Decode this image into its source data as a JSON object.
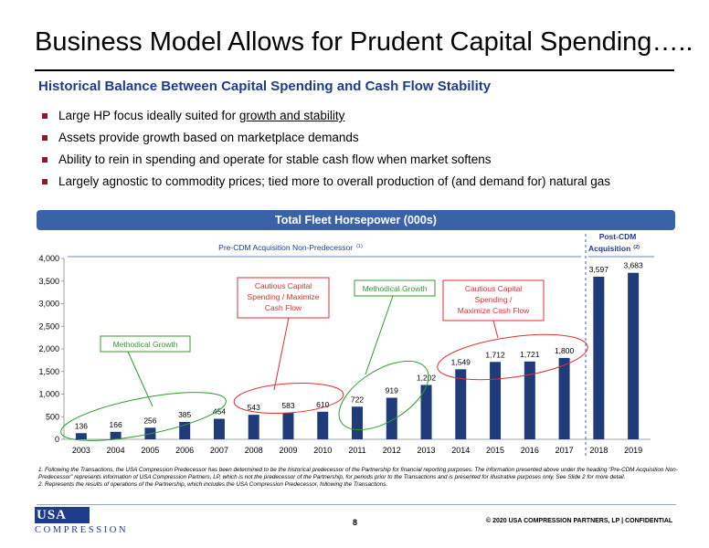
{
  "slide": {
    "title": "Business Model Allows for Prudent Capital Spending…..",
    "subtitle": "Historical Balance Between Capital Spending and Cash Flow Stability",
    "bullets": [
      {
        "pre": "Large HP focus ideally suited for ",
        "underlined": "growth and stability"
      },
      {
        "pre": "Assets provide growth based on marketplace demands",
        "underlined": ""
      },
      {
        "pre": "Ability to rein in spending and operate for stable cash flow when market softens",
        "underlined": ""
      },
      {
        "pre": "Largely agnostic to commodity prices; tied more to overall production of (and demand for) natural gas",
        "underlined": ""
      }
    ],
    "colors": {
      "title_blue": "#1f3b8c",
      "bar": "#1f3b7a",
      "banner": "#3a62a8",
      "bullet": "#8b1a2a",
      "green": "#2e9c2e",
      "red": "#e03030"
    }
  },
  "chart_data": {
    "type": "bar",
    "title": "Total Fleet Horsepower (000s)",
    "categories": [
      "2003",
      "2004",
      "2005",
      "2006",
      "2007",
      "2008",
      "2009",
      "2010",
      "2011",
      "2012",
      "2013",
      "2014",
      "2015",
      "2016",
      "2017",
      "2018",
      "2019"
    ],
    "values": [
      136,
      166,
      256,
      385,
      454,
      543,
      583,
      610,
      722,
      919,
      1202,
      1549,
      1712,
      1721,
      1800,
      3597,
      3683
    ],
    "value_labels": [
      "136",
      "166",
      "256",
      "385",
      "454",
      "543",
      "583",
      "610",
      "722",
      "919",
      "1,202",
      "1,549",
      "1,712",
      "1,721",
      "1,800",
      "3,597",
      "3,683"
    ],
    "ylim": [
      0,
      4000
    ],
    "y_ticks": [
      0,
      500,
      1000,
      1500,
      2000,
      2500,
      3000,
      3500,
      4000
    ],
    "y_tick_labels": [
      "0",
      "500",
      "1,000",
      "1,500",
      "2,000",
      "2,500",
      "3,000",
      "3,500",
      "4,000"
    ],
    "period_labels": {
      "pre": "Pre-CDM Acquisition Non-Predecessor",
      "pre_note": "(1)",
      "post_line1": "Post-CDM",
      "post_line2": "Acquisition",
      "post_note": "(2)"
    },
    "annotations": [
      {
        "label": [
          "Methodical Growth"
        ],
        "color": "green"
      },
      {
        "label": [
          "Cautious Capital",
          "Spending / Maximize",
          "Cash Flow"
        ],
        "color": "red"
      },
      {
        "label": [
          "Methodical Growth"
        ],
        "color": "green"
      },
      {
        "label": [
          "Cautious Capital",
          "Spending /",
          "Maximize Cash Flow"
        ],
        "color": "red"
      }
    ]
  },
  "footnotes": [
    "1.  Following the Transactions, the USA Compression Predecessor has been determined to be the historical predecessor of the Partnership for financial reporting purposes. The information presented above under the heading “Pre-CDM Acquisition Non-Predecessor” represents information of USA Compression Partners, LP, which is not the predecessor of the Partnership, for periods prior to the Transactions and is presented for illustrative purposes only. See Slide 2 for more detail.",
    "2.  Represents the results of operations of the Partnership, which includes the USA Compression Predecessor, following the Transactions."
  ],
  "footer": {
    "logo_main": "USA",
    "logo_sub": "COMPRESSION",
    "page_number": "8",
    "copyright": "© 2020 USA COMPRESSION PARTNERS, LP    |  CONFIDENTIAL"
  }
}
